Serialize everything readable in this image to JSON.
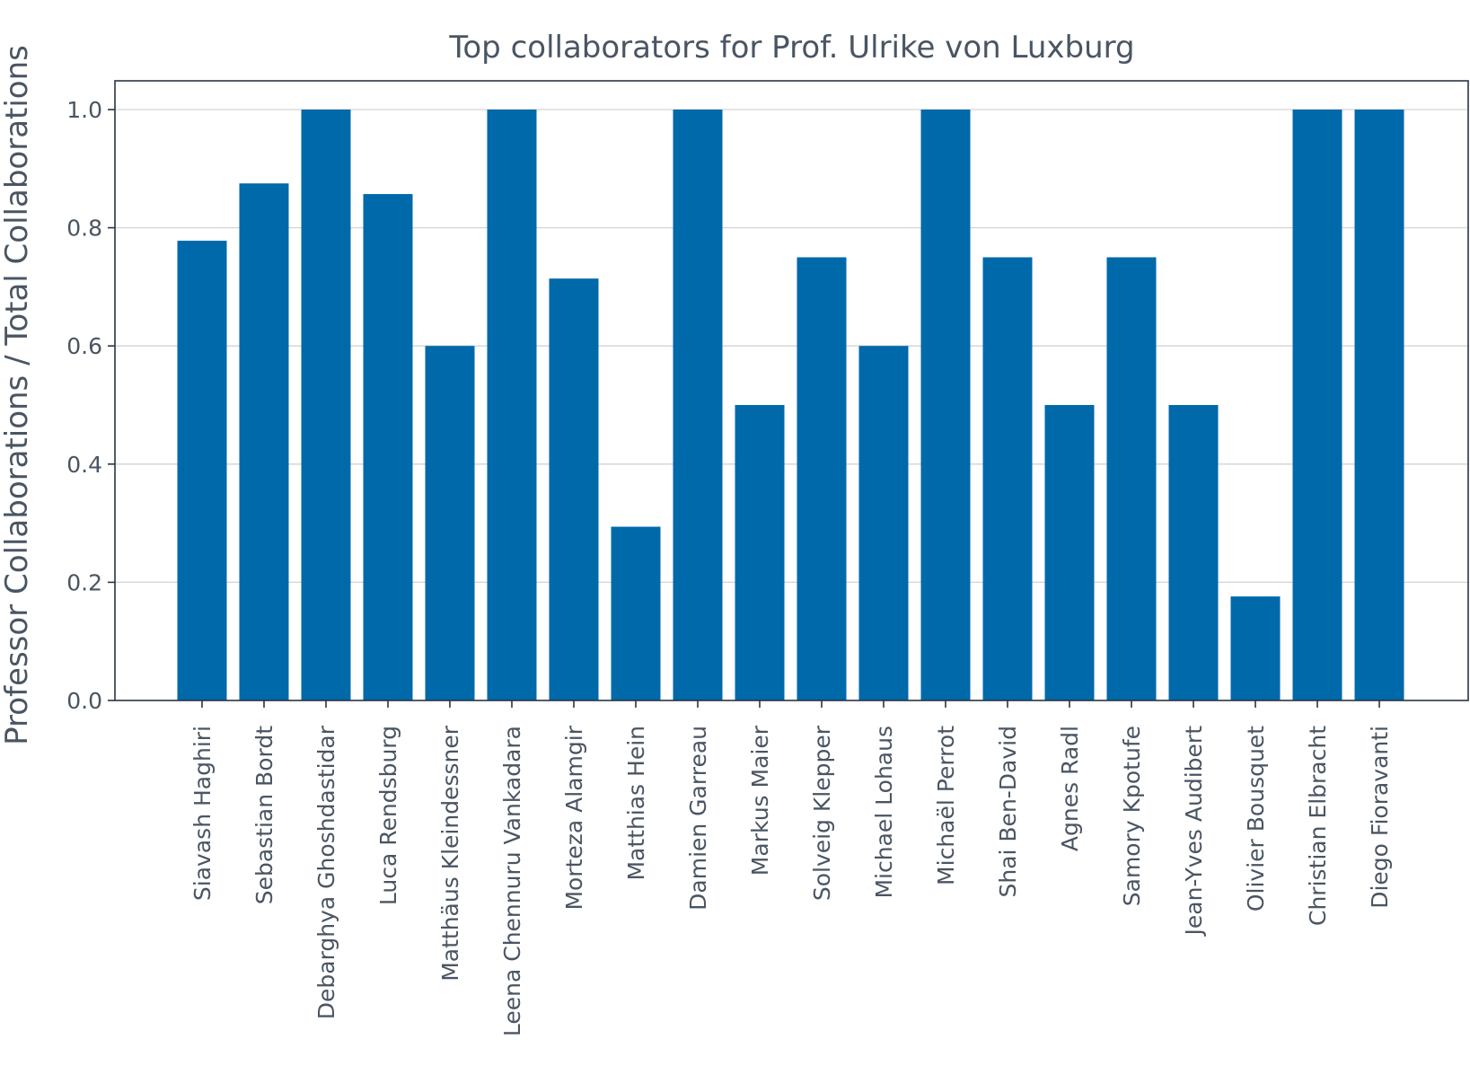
{
  "chart_data": {
    "type": "bar",
    "title": "Top collaborators for Prof. Ulrike von Luxburg",
    "xlabel": "",
    "ylabel": "Professor Collaborations / Total Collaborations",
    "ylim": [
      0,
      1.05
    ],
    "yticks": [
      "0.0",
      "0.2",
      "0.4",
      "0.6",
      "0.8",
      "1.0"
    ],
    "grid": "horizontal",
    "bar_color": "#0069aa",
    "categories": [
      "Siavash Haghiri",
      "Sebastian Bordt",
      "Debarghya Ghoshdastidar",
      "Luca Rendsburg",
      "Matthäus Kleindessner",
      "Leena Chennuru Vankadara",
      "Morteza Alamgir",
      "Matthias Hein",
      "Damien Garreau",
      "Markus Maier",
      "Solveig Klepper",
      "Michael Lohaus",
      "Michaël Perrot",
      "Shai Ben-David",
      "Agnes Radl",
      "Samory Kpotufe",
      "Jean-Yves Audibert",
      "Olivier Bousquet",
      "Christian Elbracht",
      "Diego Fioravanti"
    ],
    "values": [
      0.778,
      0.875,
      1.0,
      0.857,
      0.6,
      1.0,
      0.714,
      0.294,
      1.0,
      0.5,
      0.75,
      0.6,
      1.0,
      0.75,
      0.5,
      0.75,
      0.5,
      0.176,
      1.0,
      1.0
    ]
  }
}
